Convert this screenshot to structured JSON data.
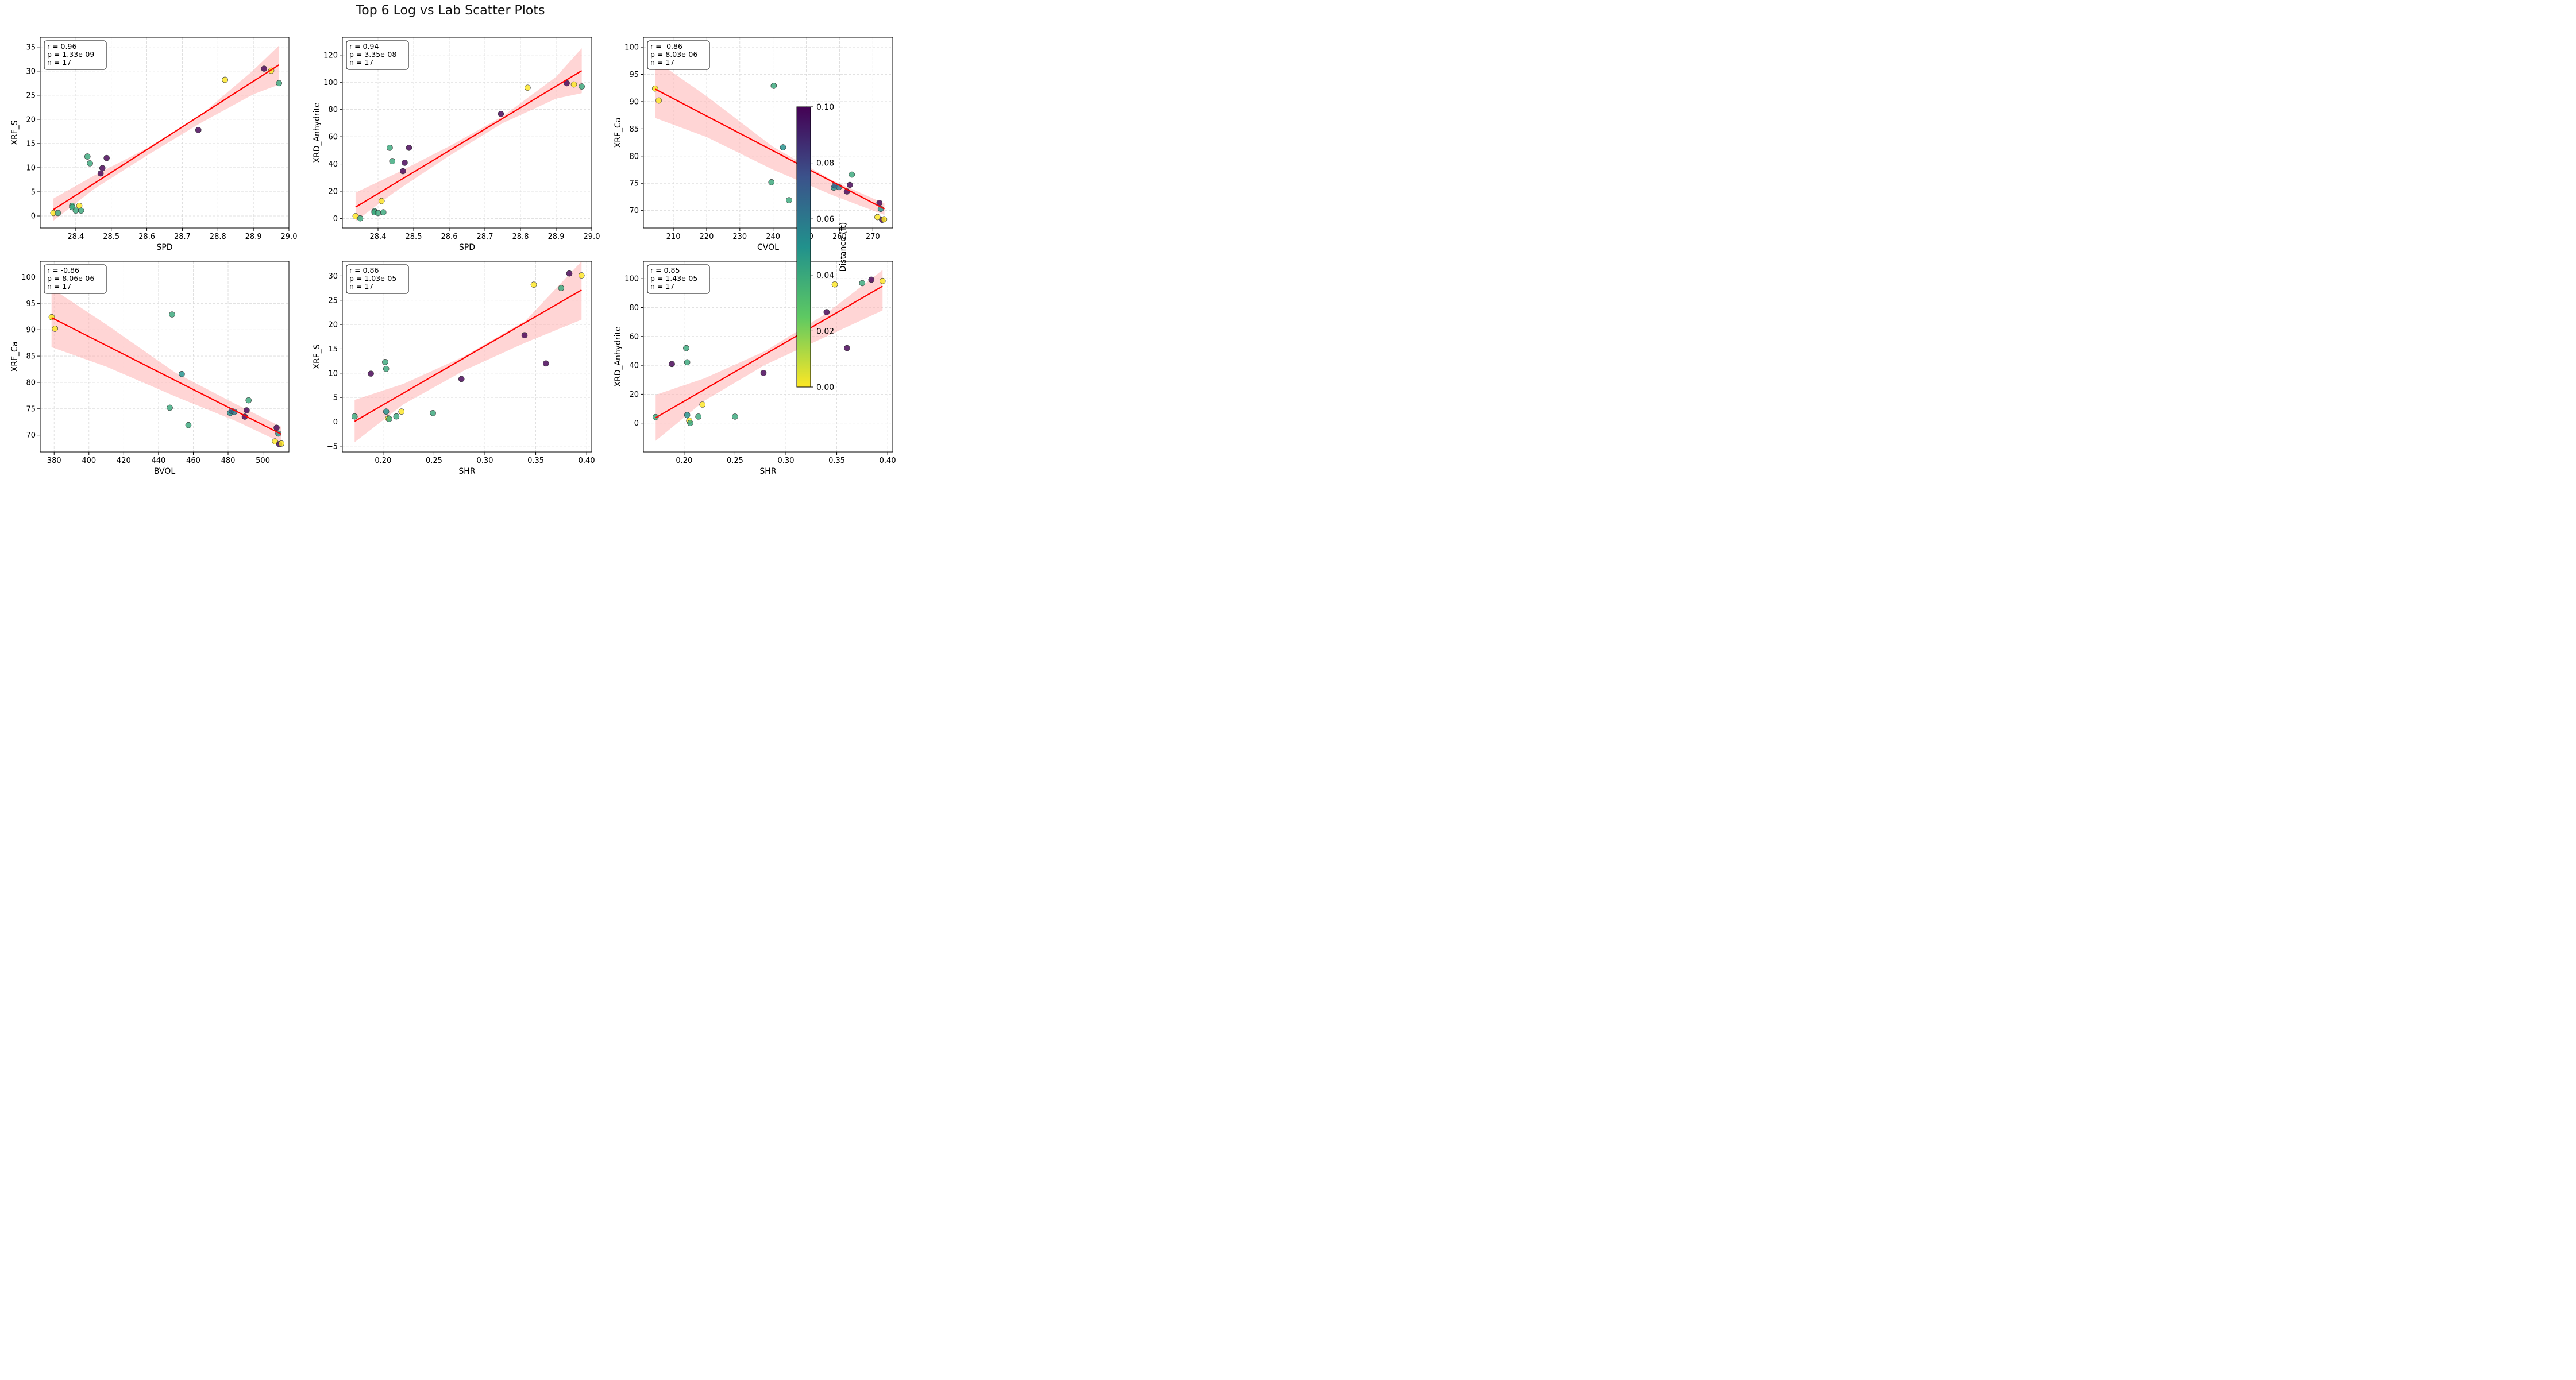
{
  "page_title": "Top 6 Log vs Lab Scatter Plots",
  "colorbar": {
    "label": "Distance (ft)",
    "min": 0,
    "max": 0.1,
    "ticks": [
      "0.00",
      "0.02",
      "0.04",
      "0.06",
      "0.08",
      "0.10"
    ],
    "colors": [
      "#fde725",
      "#5ec962",
      "#21918c",
      "#3b528b",
      "#440154"
    ]
  },
  "colors": {
    "regression_line": "#ff0000",
    "confidence_band": "#ffb3b3"
  },
  "chart_data": [
    {
      "type": "scatter",
      "xlabel": "SPD",
      "ylabel": "XRF_S",
      "xlim": [
        28.3,
        29.0
      ],
      "ylim": [
        -2.5,
        37
      ],
      "xticks": [
        28.4,
        28.5,
        28.6,
        28.7,
        28.8,
        28.9,
        29.0
      ],
      "xtick_labels": [
        "28.4",
        "28.5",
        "28.6",
        "28.7",
        "28.8",
        "28.9",
        "29.0"
      ],
      "yticks": [
        0,
        5,
        10,
        15,
        20,
        25,
        30,
        35
      ],
      "ytick_labels": [
        "0",
        "5",
        "10",
        "15",
        "20",
        "25",
        "30",
        "35"
      ],
      "stats": [
        "r = 0.96",
        "p = 1.33e-09",
        "n = 17"
      ],
      "fit": {
        "x": [
          28.337,
          28.972
        ],
        "y": [
          1.3,
          31.3
        ]
      },
      "band": {
        "x": [
          28.337,
          28.45,
          28.6,
          28.75,
          28.9,
          28.972
        ],
        "lower": [
          -1.0,
          5.5,
          12.5,
          19.2,
          25.2,
          27.2
        ],
        "upper": [
          3.6,
          8.3,
          14.0,
          20.8,
          30.2,
          35.3
        ]
      },
      "points": [
        {
          "x": 28.337,
          "y": 0.6,
          "d": 0.0
        },
        {
          "x": 28.35,
          "y": 0.6,
          "d": 0.04
        },
        {
          "x": 28.39,
          "y": 2.1,
          "d": 0.04
        },
        {
          "x": 28.39,
          "y": 1.8,
          "d": 0.04
        },
        {
          "x": 28.4,
          "y": 1.1,
          "d": 0.04
        },
        {
          "x": 28.41,
          "y": 2.1,
          "d": 0.0
        },
        {
          "x": 28.415,
          "y": 1.1,
          "d": 0.04
        },
        {
          "x": 28.433,
          "y": 12.3,
          "d": 0.04
        },
        {
          "x": 28.44,
          "y": 10.9,
          "d": 0.04
        },
        {
          "x": 28.47,
          "y": 8.8,
          "d": 0.1
        },
        {
          "x": 28.475,
          "y": 9.9,
          "d": 0.1
        },
        {
          "x": 28.487,
          "y": 12.0,
          "d": 0.1
        },
        {
          "x": 28.745,
          "y": 17.8,
          "d": 0.1
        },
        {
          "x": 28.82,
          "y": 28.2,
          "d": 0.0
        },
        {
          "x": 28.93,
          "y": 30.5,
          "d": 0.1
        },
        {
          "x": 28.95,
          "y": 30.1,
          "d": 0.0
        },
        {
          "x": 28.972,
          "y": 27.5,
          "d": 0.04
        }
      ]
    },
    {
      "type": "scatter",
      "xlabel": "SPD",
      "ylabel": "XRD_Anhydrite",
      "xlim": [
        28.3,
        29.0
      ],
      "ylim": [
        -7,
        133
      ],
      "xticks": [
        28.4,
        28.5,
        28.6,
        28.7,
        28.8,
        28.9,
        29.0
      ],
      "xtick_labels": [
        "28.4",
        "28.5",
        "28.6",
        "28.7",
        "28.8",
        "28.9",
        "29.0"
      ],
      "yticks": [
        0,
        20,
        40,
        60,
        80,
        100,
        120
      ],
      "ytick_labels": [
        "0",
        "20",
        "40",
        "60",
        "80",
        "100",
        "120"
      ],
      "stats": [
        "r = 0.94",
        "p = 3.35e-08",
        "n = 17"
      ],
      "fit": {
        "x": [
          28.337,
          28.972
        ],
        "y": [
          8.3,
          108.5
        ]
      },
      "band": {
        "x": [
          28.337,
          28.45,
          28.6,
          28.75,
          28.9,
          28.972
        ],
        "lower": [
          -2.0,
          20.0,
          46.0,
          70.0,
          88.0,
          92.0
        ],
        "upper": [
          19.0,
          33.0,
          53.0,
          75.0,
          104.0,
          125.0
        ]
      },
      "points": [
        {
          "x": 28.337,
          "y": 1.7,
          "d": 0.0
        },
        {
          "x": 28.35,
          "y": 0.1,
          "d": 0.04
        },
        {
          "x": 28.39,
          "y": 5.3,
          "d": 0.04
        },
        {
          "x": 28.39,
          "y": 4.5,
          "d": 0.04
        },
        {
          "x": 28.4,
          "y": 4.0,
          "d": 0.04
        },
        {
          "x": 28.41,
          "y": 12.8,
          "d": 0.0
        },
        {
          "x": 28.415,
          "y": 4.5,
          "d": 0.04
        },
        {
          "x": 28.433,
          "y": 51.9,
          "d": 0.04
        },
        {
          "x": 28.44,
          "y": 42.1,
          "d": 0.04
        },
        {
          "x": 28.47,
          "y": 34.7,
          "d": 0.1
        },
        {
          "x": 28.475,
          "y": 40.9,
          "d": 0.1
        },
        {
          "x": 28.487,
          "y": 51.9,
          "d": 0.1
        },
        {
          "x": 28.745,
          "y": 76.8,
          "d": 0.1
        },
        {
          "x": 28.82,
          "y": 96.0,
          "d": 0.0
        },
        {
          "x": 28.93,
          "y": 99.3,
          "d": 0.1
        },
        {
          "x": 28.95,
          "y": 98.4,
          "d": 0.0
        },
        {
          "x": 28.972,
          "y": 96.9,
          "d": 0.04
        }
      ]
    },
    {
      "type": "scatter",
      "xlabel": "CVOL",
      "ylabel": "XRF_Ca",
      "xlim": [
        201,
        276
      ],
      "ylim": [
        66.8,
        101.8
      ],
      "xticks": [
        210,
        220,
        230,
        240,
        250,
        260,
        270
      ],
      "xtick_labels": [
        "210",
        "220",
        "230",
        "240",
        "250",
        "260",
        "270"
      ],
      "yticks": [
        70,
        75,
        80,
        85,
        90,
        95,
        100
      ],
      "ytick_labels": [
        "70",
        "75",
        "80",
        "85",
        "90",
        "95",
        "100"
      ],
      "stats": [
        "r = -0.86",
        "p = 8.03e-06",
        "n = 17"
      ],
      "fit": {
        "x": [
          204.5,
          273.5
        ],
        "y": [
          92.3,
          70.3
        ]
      },
      "band": {
        "x": [
          204.5,
          220,
          240,
          258,
          273.5
        ],
        "lower": [
          87.0,
          83.5,
          77.5,
          72.8,
          69.2
        ],
        "upper": [
          97.6,
          91.0,
          81.7,
          75.5,
          71.3
        ]
      },
      "points": [
        {
          "x": 204.5,
          "y": 92.4,
          "d": 0.0
        },
        {
          "x": 205.6,
          "y": 90.2,
          "d": 0.0
        },
        {
          "x": 240.2,
          "y": 92.9,
          "d": 0.04
        },
        {
          "x": 243.0,
          "y": 81.6,
          "d": 0.05
        },
        {
          "x": 239.5,
          "y": 75.2,
          "d": 0.04
        },
        {
          "x": 244.8,
          "y": 71.9,
          "d": 0.04
        },
        {
          "x": 258.3,
          "y": 74.2,
          "d": 0.05
        },
        {
          "x": 258.6,
          "y": 74.6,
          "d": 0.07
        },
        {
          "x": 259.8,
          "y": 74.3,
          "d": 0.06
        },
        {
          "x": 262.2,
          "y": 73.5,
          "d": 0.1
        },
        {
          "x": 263.1,
          "y": 74.7,
          "d": 0.1
        },
        {
          "x": 263.7,
          "y": 76.6,
          "d": 0.04
        },
        {
          "x": 272.0,
          "y": 71.4,
          "d": 0.1
        },
        {
          "x": 272.4,
          "y": 70.3,
          "d": 0.05
        },
        {
          "x": 271.4,
          "y": 68.8,
          "d": 0.0
        },
        {
          "x": 272.8,
          "y": 68.3,
          "d": 0.1
        },
        {
          "x": 273.4,
          "y": 68.4,
          "d": 0.0
        }
      ]
    },
    {
      "type": "scatter",
      "xlabel": "BVOL",
      "ylabel": "XRF_Ca",
      "xlim": [
        372,
        515
      ],
      "ylim": [
        66.8,
        103
      ],
      "xticks": [
        380,
        400,
        420,
        440,
        460,
        480,
        500
      ],
      "xtick_labels": [
        "380",
        "400",
        "420",
        "440",
        "460",
        "480",
        "500"
      ],
      "yticks": [
        70,
        75,
        80,
        85,
        90,
        95,
        100
      ],
      "ytick_labels": [
        "70",
        "75",
        "80",
        "85",
        "90",
        "95",
        "100"
      ],
      "stats": [
        "r = -0.86",
        "p = 8.06e-06",
        "n = 17"
      ],
      "fit": {
        "x": [
          378.5,
          510.5
        ],
        "y": [
          92.3,
          70.2
        ]
      },
      "band": {
        "x": [
          378.5,
          410,
          450,
          485,
          510.5
        ],
        "lower": [
          86.7,
          83.0,
          77.3,
          72.6,
          68.6
        ],
        "upper": [
          97.9,
          91.0,
          81.8,
          75.8,
          71.6
        ]
      },
      "points": [
        {
          "x": 378.6,
          "y": 92.4,
          "d": 0.0
        },
        {
          "x": 380.5,
          "y": 90.2,
          "d": 0.0
        },
        {
          "x": 447.8,
          "y": 92.9,
          "d": 0.04
        },
        {
          "x": 453.4,
          "y": 81.6,
          "d": 0.05
        },
        {
          "x": 446.5,
          "y": 75.2,
          "d": 0.04
        },
        {
          "x": 457.2,
          "y": 71.9,
          "d": 0.04
        },
        {
          "x": 481.2,
          "y": 74.2,
          "d": 0.05
        },
        {
          "x": 482.0,
          "y": 74.6,
          "d": 0.07
        },
        {
          "x": 483.6,
          "y": 74.4,
          "d": 0.06
        },
        {
          "x": 489.6,
          "y": 73.5,
          "d": 0.1
        },
        {
          "x": 490.7,
          "y": 74.7,
          "d": 0.1
        },
        {
          "x": 491.8,
          "y": 76.6,
          "d": 0.04
        },
        {
          "x": 507.9,
          "y": 71.4,
          "d": 0.1
        },
        {
          "x": 508.9,
          "y": 70.3,
          "d": 0.05
        },
        {
          "x": 507.0,
          "y": 68.8,
          "d": 0.0
        },
        {
          "x": 509.4,
          "y": 68.3,
          "d": 0.1
        },
        {
          "x": 510.6,
          "y": 68.4,
          "d": 0.0
        }
      ]
    },
    {
      "type": "scatter",
      "xlabel": "SHR",
      "ylabel": "XRF_S",
      "xlim": [
        0.16,
        0.405
      ],
      "ylim": [
        -6.2,
        33
      ],
      "xticks": [
        0.2,
        0.25,
        0.3,
        0.35,
        0.4
      ],
      "xtick_labels": [
        "0.20",
        "0.25",
        "0.30",
        "0.35",
        "0.40"
      ],
      "yticks": [
        -5,
        0,
        5,
        10,
        15,
        20,
        25,
        30
      ],
      "ytick_labels": [
        "−5",
        "0",
        "5",
        "10",
        "15",
        "20",
        "25",
        "30"
      ],
      "stats": [
        "r = 0.86",
        "p = 1.03e-05",
        "n = 17"
      ],
      "fit": {
        "x": [
          0.172,
          0.395
        ],
        "y": [
          0.1,
          27.1
        ]
      },
      "band": {
        "x": [
          0.172,
          0.22,
          0.28,
          0.34,
          0.395
        ],
        "lower": [
          -4.2,
          3.6,
          10.6,
          16.3,
          21.0
        ],
        "upper": [
          4.5,
          7.8,
          13.5,
          20.8,
          33.0
        ]
      },
      "points": [
        {
          "x": 0.172,
          "y": 1.1,
          "d": 0.04
        },
        {
          "x": 0.188,
          "y": 9.9,
          "d": 0.1
        },
        {
          "x": 0.202,
          "y": 12.3,
          "d": 0.04
        },
        {
          "x": 0.203,
          "y": 10.9,
          "d": 0.04
        },
        {
          "x": 0.203,
          "y": 2.1,
          "d": 0.05
        },
        {
          "x": 0.205,
          "y": 0.7,
          "d": 0.0
        },
        {
          "x": 0.206,
          "y": 0.6,
          "d": 0.04
        },
        {
          "x": 0.213,
          "y": 1.1,
          "d": 0.04
        },
        {
          "x": 0.218,
          "y": 2.1,
          "d": 0.0
        },
        {
          "x": 0.249,
          "y": 1.8,
          "d": 0.04
        },
        {
          "x": 0.277,
          "y": 8.8,
          "d": 0.1
        },
        {
          "x": 0.339,
          "y": 17.8,
          "d": 0.1
        },
        {
          "x": 0.348,
          "y": 28.2,
          "d": 0.0
        },
        {
          "x": 0.36,
          "y": 12.0,
          "d": 0.1
        },
        {
          "x": 0.375,
          "y": 27.5,
          "d": 0.04
        },
        {
          "x": 0.383,
          "y": 30.5,
          "d": 0.1
        },
        {
          "x": 0.395,
          "y": 30.1,
          "d": 0.0
        }
      ]
    },
    {
      "type": "scatter",
      "xlabel": "SHR",
      "ylabel": "XRD_Anhydrite",
      "xlim": [
        0.16,
        0.405
      ],
      "ylim": [
        -20,
        112
      ],
      "xticks": [
        0.2,
        0.25,
        0.3,
        0.35,
        0.4
      ],
      "xtick_labels": [
        "0.20",
        "0.25",
        "0.30",
        "0.35",
        "0.40"
      ],
      "yticks": [
        0,
        20,
        40,
        60,
        80,
        100
      ],
      "ytick_labels": [
        "0",
        "20",
        "40",
        "60",
        "80",
        "100"
      ],
      "stats": [
        "r = 0.85",
        "p = 1.43e-05",
        "n = 17"
      ],
      "fit": {
        "x": [
          0.172,
          0.395
        ],
        "y": [
          3.7,
          94.8
        ]
      },
      "band": {
        "x": [
          0.172,
          0.22,
          0.28,
          0.34,
          0.395
        ],
        "lower": [
          -12.3,
          15.5,
          40.5,
          60.0,
          78.0
        ],
        "upper": [
          19.5,
          31.0,
          50.0,
          76.0,
          106.0
        ]
      },
      "points": [
        {
          "x": 0.172,
          "y": 4.2,
          "d": 0.04
        },
        {
          "x": 0.188,
          "y": 40.9,
          "d": 0.1
        },
        {
          "x": 0.202,
          "y": 51.9,
          "d": 0.04
        },
        {
          "x": 0.203,
          "y": 42.1,
          "d": 0.04
        },
        {
          "x": 0.203,
          "y": 5.6,
          "d": 0.05
        },
        {
          "x": 0.205,
          "y": 1.7,
          "d": 0.0
        },
        {
          "x": 0.206,
          "y": 0.1,
          "d": 0.04
        },
        {
          "x": 0.214,
          "y": 4.5,
          "d": 0.04
        },
        {
          "x": 0.218,
          "y": 12.8,
          "d": 0.0
        },
        {
          "x": 0.25,
          "y": 4.5,
          "d": 0.04
        },
        {
          "x": 0.278,
          "y": 34.7,
          "d": 0.1
        },
        {
          "x": 0.34,
          "y": 76.8,
          "d": 0.1
        },
        {
          "x": 0.348,
          "y": 96.0,
          "d": 0.0
        },
        {
          "x": 0.36,
          "y": 51.9,
          "d": 0.1
        },
        {
          "x": 0.375,
          "y": 96.9,
          "d": 0.04
        },
        {
          "x": 0.384,
          "y": 99.3,
          "d": 0.1
        },
        {
          "x": 0.395,
          "y": 98.4,
          "d": 0.0
        }
      ]
    }
  ]
}
